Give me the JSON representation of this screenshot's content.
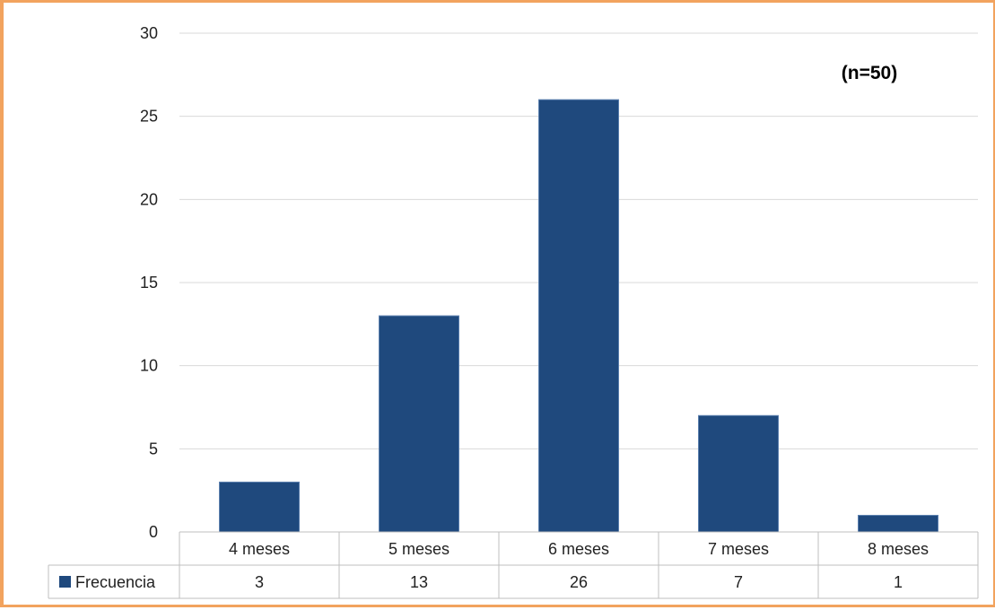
{
  "chart_data": {
    "type": "bar",
    "categories": [
      "4 meses",
      "5 meses",
      "6 meses",
      "7 meses",
      "8 meses"
    ],
    "series": [
      {
        "name": "Frecuencia",
        "values": [
          3,
          13,
          26,
          7,
          1
        ],
        "color": "#1f497d"
      }
    ],
    "ylim": [
      0,
      30
    ],
    "yticks": [
      0,
      5,
      10,
      15,
      20,
      25,
      30
    ],
    "annotation": "(n=50)",
    "grid": true,
    "legend": "data-table-row"
  },
  "colors": {
    "frame": "#f2a35e",
    "bar": "#1f497d",
    "grid": "#d9d9d9"
  }
}
